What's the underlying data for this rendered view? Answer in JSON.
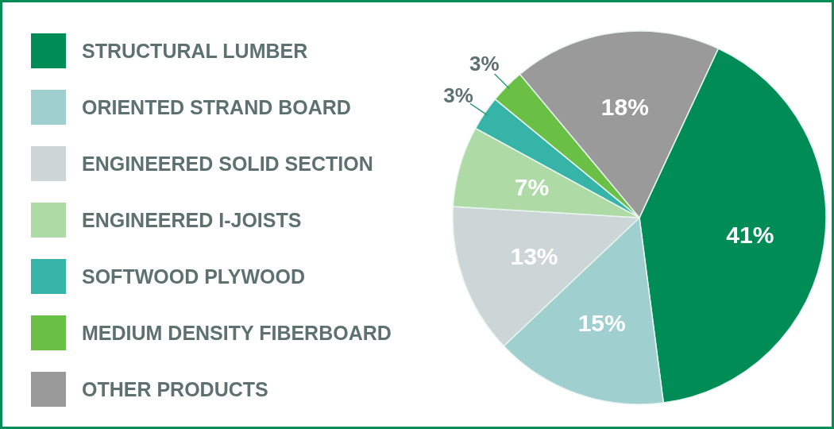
{
  "chart_data": {
    "type": "pie",
    "categories": [
      "STRUCTURAL LUMBER",
      "ORIENTED STRAND BOARD",
      "ENGINEERED SOLID SECTION",
      "ENGINEERED I-JOISTS",
      "SOFTWOOD PLYWOOD",
      "MEDIUM DENSITY FIBERBOARD",
      "OTHER PRODUCTS"
    ],
    "values": [
      41,
      15,
      13,
      7,
      3,
      3,
      18
    ],
    "colors": [
      "#008c57",
      "#9fd0cf",
      "#cdd6d6",
      "#aedaa6",
      "#36b4a8",
      "#6abf45",
      "#9a9a9a"
    ],
    "value_labels": [
      "41%",
      "15%",
      "13%",
      "7%",
      "3%",
      "3%",
      "18%"
    ],
    "legend": "left"
  }
}
